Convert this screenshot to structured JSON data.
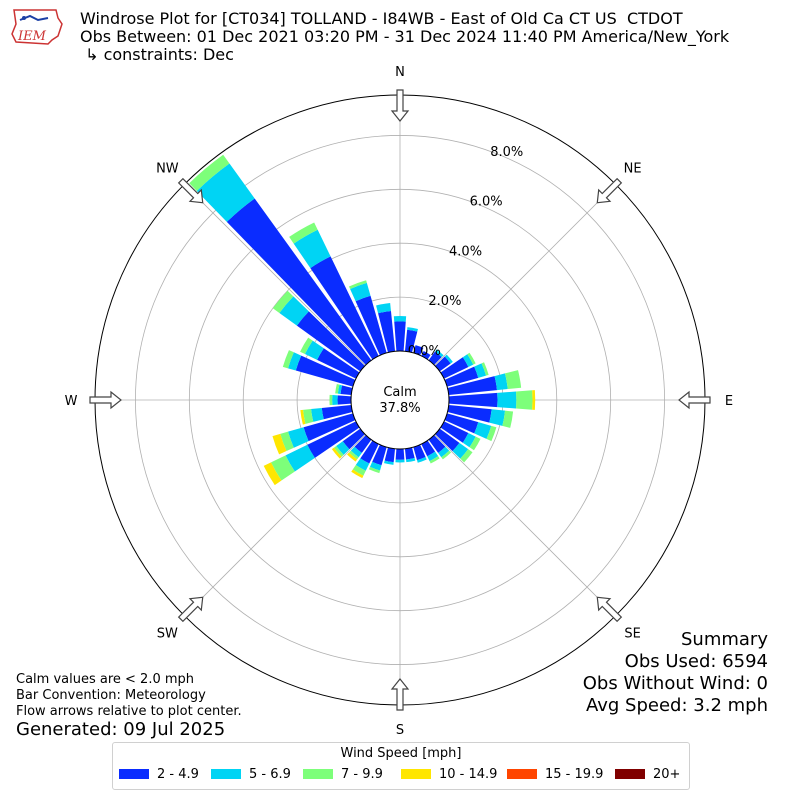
{
  "header": {
    "title_line1": "Windrose Plot for [CT034] TOLLAND - I84WB - East of Old Ca CT US  CTDOT",
    "title_line2": "Obs Between: 01 Dec 2021 03:20 PM - 31 Dec 2024 11:40 PM America/New_York",
    "title_line3": " ↳ constraints: Dec",
    "logo_text": "IEM"
  },
  "notes": {
    "calm_note": "Calm values are < 2.0 mph",
    "bar_convention": "Bar Convention: Meteorology",
    "flow_note": "Flow arrows relative to plot center.",
    "generated": "Generated: 09 Jul 2025"
  },
  "summary": {
    "title": "Summary",
    "obs_used": "Obs Used: 6594",
    "obs_without_wind": "Obs Without Wind: 0",
    "avg_speed": "Avg Speed: 3.2 mph"
  },
  "chart_data": {
    "type": "windrose",
    "calm_label": "Calm",
    "calm_value": "37.8%",
    "calm_percent": 37.8,
    "radial_ticks": [
      "0.0%",
      "2.0%",
      "4.0%",
      "6.0%",
      "8.0%"
    ],
    "radial_tick_values": [
      0,
      2,
      4,
      6,
      8
    ],
    "rmax": 9.5,
    "directions": [
      "N",
      "NE",
      "E",
      "SE",
      "S",
      "SW",
      "W",
      "NW"
    ],
    "legend_title": "Wind Speed [mph]",
    "bins": [
      {
        "label": "2 - 4.9",
        "color": "#0a2cff"
      },
      {
        "label": "5 - 6.9",
        "color": "#00d4f4"
      },
      {
        "label": "7 - 9.9",
        "color": "#7dff7a"
      },
      {
        "label": "10 - 14.9",
        "color": "#ffe600"
      },
      {
        "label": "15 - 19.9",
        "color": "#ff4500"
      },
      {
        "label": "20+",
        "color": "#800000"
      }
    ],
    "sectors": [
      {
        "dir": 0,
        "values": [
          1.1,
          0.2,
          0,
          0,
          0,
          0
        ]
      },
      {
        "dir": 10,
        "values": [
          0.8,
          0.1,
          0,
          0,
          0,
          0
        ]
      },
      {
        "dir": 20,
        "values": [
          0.3,
          0.0,
          0,
          0,
          0,
          0
        ]
      },
      {
        "dir": 30,
        "values": [
          0.2,
          0.0,
          0,
          0,
          0,
          0
        ]
      },
      {
        "dir": 40,
        "values": [
          0.4,
          0.1,
          0,
          0,
          0,
          0
        ]
      },
      {
        "dir": 50,
        "values": [
          0.5,
          0.1,
          0,
          0,
          0,
          0
        ]
      },
      {
        "dir": 60,
        "values": [
          1.0,
          0.2,
          0.1,
          0,
          0,
          0
        ]
      },
      {
        "dir": 70,
        "values": [
          1.2,
          0.3,
          0.1,
          0,
          0,
          0
        ]
      },
      {
        "dir": 80,
        "values": [
          1.8,
          0.4,
          0.5,
          0,
          0,
          0
        ]
      },
      {
        "dir": 90,
        "values": [
          1.8,
          0.7,
          0.6,
          0.1,
          0,
          0
        ]
      },
      {
        "dir": 100,
        "values": [
          1.6,
          0.5,
          0.3,
          0,
          0,
          0
        ]
      },
      {
        "dir": 110,
        "values": [
          1.2,
          0.5,
          0.2,
          0,
          0,
          0
        ]
      },
      {
        "dir": 120,
        "values": [
          1.0,
          0.3,
          0.2,
          0,
          0,
          0
        ]
      },
      {
        "dir": 130,
        "values": [
          0.9,
          0.4,
          0.2,
          0,
          0,
          0
        ]
      },
      {
        "dir": 140,
        "values": [
          0.6,
          0.2,
          0.1,
          0,
          0,
          0
        ]
      },
      {
        "dir": 150,
        "values": [
          0.5,
          0.2,
          0.1,
          0,
          0,
          0
        ]
      },
      {
        "dir": 160,
        "values": [
          0.5,
          0.1,
          0,
          0,
          0,
          0
        ]
      },
      {
        "dir": 170,
        "values": [
          0.4,
          0.1,
          0,
          0,
          0,
          0
        ]
      },
      {
        "dir": 180,
        "values": [
          0.4,
          0.1,
          0,
          0,
          0,
          0
        ]
      },
      {
        "dir": 190,
        "values": [
          0.5,
          0.1,
          0,
          0,
          0,
          0
        ]
      },
      {
        "dir": 200,
        "values": [
          0.7,
          0.2,
          0.1,
          0,
          0,
          0
        ]
      },
      {
        "dir": 210,
        "values": [
          0.8,
          0.3,
          0.2,
          0.1,
          0,
          0
        ]
      },
      {
        "dir": 220,
        "values": [
          0.6,
          0.2,
          0.1,
          0.1,
          0,
          0
        ]
      },
      {
        "dir": 230,
        "values": [
          0.8,
          0.3,
          0.1,
          0.1,
          0,
          0
        ]
      },
      {
        "dir": 240,
        "values": [
          2.0,
          0.9,
          0.6,
          0.3,
          0,
          0
        ]
      },
      {
        "dir": 250,
        "values": [
          1.9,
          0.6,
          0.3,
          0.3,
          0,
          0
        ]
      },
      {
        "dir": 260,
        "values": [
          1.1,
          0.4,
          0.3,
          0.1,
          0,
          0
        ]
      },
      {
        "dir": 270,
        "values": [
          0.5,
          0.2,
          0.1,
          0,
          0,
          0
        ]
      },
      {
        "dir": 280,
        "values": [
          0.4,
          0.1,
          0.1,
          0,
          0,
          0
        ]
      },
      {
        "dir": 290,
        "values": [
          2.2,
          0.3,
          0.2,
          0,
          0,
          0
        ]
      },
      {
        "dir": 300,
        "values": [
          1.6,
          0.5,
          0.2,
          0,
          0,
          0
        ]
      },
      {
        "dir": 310,
        "values": [
          2.9,
          0.8,
          0.3,
          0,
          0,
          0
        ]
      },
      {
        "dir": 320,
        "values": [
          7.4,
          1.6,
          0.4,
          0,
          0,
          0
        ]
      },
      {
        "dir": 330,
        "values": [
          4.1,
          1.1,
          0.3,
          0,
          0,
          0
        ]
      },
      {
        "dir": 340,
        "values": [
          2.2,
          0.5,
          0.1,
          0,
          0,
          0
        ]
      },
      {
        "dir": 350,
        "values": [
          1.5,
          0.3,
          0,
          0,
          0,
          0
        ]
      }
    ]
  }
}
